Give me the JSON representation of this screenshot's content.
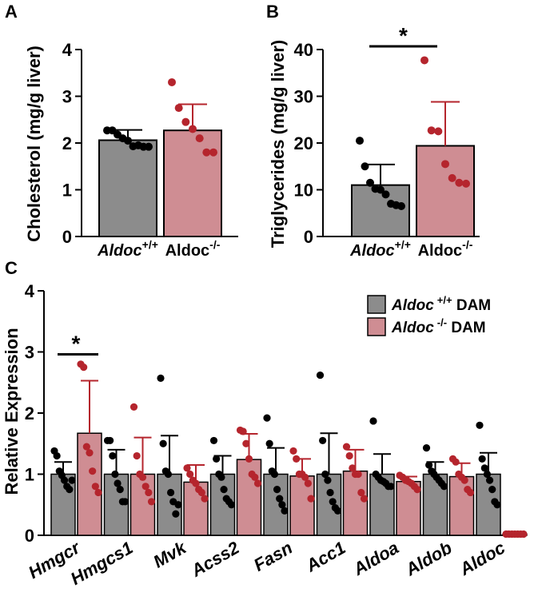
{
  "colors": {
    "wt_bar": "#8c8c8c",
    "ko_bar": "#cf8d93",
    "wt_point": "#000000",
    "ko_point": "#b5252d",
    "ko_err": "#b5252d",
    "wt_err": "#000000"
  },
  "chart_data": [
    {
      "panel": "A",
      "type": "bar",
      "ylabel": "Cholesterol (mg/g liver)",
      "ylim": [
        0,
        4
      ],
      "yticks": [
        "0",
        "1",
        "2",
        "3",
        "4"
      ],
      "categories": [
        {
          "italic": "Aldoc",
          "sup": "+/+",
          "plain": ""
        },
        {
          "italic": "",
          "plain": "Aldoc",
          "sup": "-/-"
        }
      ],
      "series": [
        {
          "name": "Aldoc +/+",
          "mean": 2.06,
          "sd": 0.22,
          "points": [
            2.27,
            2.27,
            2.18,
            2.1,
            2.05,
            1.93,
            1.95,
            1.92,
            1.92
          ]
        },
        {
          "name": "Aldoc -/-",
          "mean": 2.27,
          "sd": 0.56,
          "points": [
            3.3,
            2.75,
            2.45,
            2.3,
            2.1,
            1.8,
            1.8
          ]
        }
      ]
    },
    {
      "panel": "B",
      "type": "bar",
      "ylabel": "Triglycerides (mg/g liver)",
      "ylim": [
        0,
        40
      ],
      "yticks": [
        "0",
        "10",
        "20",
        "30",
        "40"
      ],
      "categories": [
        {
          "italic": "Aldoc",
          "sup": "+/+",
          "plain": ""
        },
        {
          "italic": "",
          "plain": "Aldoc",
          "sup": "-/-"
        }
      ],
      "significance": "*",
      "series": [
        {
          "name": "Aldoc +/+",
          "mean": 11.0,
          "sd": 4.4,
          "points": [
            20.5,
            15.0,
            11.5,
            10.2,
            10.0,
            9.0,
            7.0,
            6.7,
            6.5
          ]
        },
        {
          "name": "Aldoc -/-",
          "mean": 19.4,
          "sd": 9.4,
          "points": [
            37.7,
            22.7,
            22.5,
            15.5,
            12.5,
            11.5,
            11.3
          ]
        }
      ]
    },
    {
      "panel": "C",
      "type": "bar",
      "ylabel": "Relative Expression",
      "ylim": [
        0,
        4
      ],
      "yticks": [
        "0",
        "1",
        "2",
        "3",
        "4"
      ],
      "categories": [
        "Hmgcr",
        "Hmgcs1",
        "Mvk",
        "Acss2",
        "Fasn",
        "Acc1",
        "Aldoa",
        "Aldob",
        "Aldoc"
      ],
      "legend": [
        {
          "italic": "Aldoc",
          "sup": "+/+",
          "plain": " DAM"
        },
        {
          "italic": "Aldoc",
          "sup": "-/-",
          "plain": " DAM"
        }
      ],
      "significance": {
        "category": "Hmgcr",
        "label": "*"
      },
      "series": [
        {
          "name": "Aldoc +/+ DAM",
          "means": [
            1.0,
            1.0,
            1.0,
            1.0,
            1.0,
            1.0,
            1.0,
            1.0,
            1.0
          ],
          "sds": [
            0.2,
            0.4,
            0.63,
            0.3,
            0.43,
            0.67,
            0.33,
            0.2,
            0.35
          ],
          "points": [
            [
              1.38,
              1.3,
              1.05,
              0.98,
              0.9,
              0.8,
              0.75,
              0.9
            ],
            [
              1.55,
              1.55,
              1.3,
              1.0,
              0.85,
              0.75,
              0.55,
              0.55
            ],
            [
              2.57,
              1.5,
              1.05,
              1.0,
              0.7,
              0.55,
              0.35,
              0.5
            ],
            [
              1.55,
              1.25,
              1.0,
              0.95,
              0.75,
              0.6,
              0.55,
              0.5
            ],
            [
              1.92,
              1.5,
              1.05,
              1.0,
              0.75,
              0.6,
              0.5,
              0.4
            ],
            [
              2.62,
              1.55,
              1.0,
              0.9,
              0.7,
              0.55,
              0.45,
              0.4
            ],
            [
              1.87,
              1.0,
              0.95,
              0.9,
              0.88,
              0.85,
              0.8,
              0.8
            ],
            [
              1.43,
              1.15,
              1.05,
              1.0,
              0.95,
              0.9,
              0.85,
              0.8
            ],
            [
              1.8,
              1.25,
              1.1,
              1.0,
              0.9,
              0.75,
              0.55,
              0.5
            ]
          ]
        },
        {
          "name": "Aldoc -/- DAM",
          "means": [
            1.67,
            1.0,
            0.87,
            1.24,
            0.97,
            1.05,
            0.88,
            0.96,
            0.02
          ],
          "sds": [
            0.86,
            0.6,
            0.28,
            0.42,
            0.28,
            0.35,
            0.08,
            0.22,
            0.02
          ],
          "points": [
            [
              2.8,
              2.75,
              1.45,
              1.35,
              1.05,
              0.8,
              0.7
            ],
            [
              2.1,
              1.3,
              1.0,
              0.95,
              0.8,
              0.7,
              0.55
            ],
            [
              1.1,
              1.0,
              0.9,
              0.85,
              0.75,
              0.7,
              0.6
            ],
            [
              1.72,
              1.7,
              1.5,
              1.25,
              1.0,
              0.95,
              0.85
            ],
            [
              1.38,
              1.25,
              1.0,
              1.0,
              0.95,
              0.85,
              0.6
            ],
            [
              1.45,
              1.3,
              1.1,
              1.0,
              1.0,
              0.7,
              0.6
            ],
            [
              0.98,
              0.95,
              0.9,
              0.88,
              0.85,
              0.8,
              0.75
            ],
            [
              1.25,
              1.2,
              1.0,
              0.95,
              0.9,
              0.75,
              0.7
            ],
            [
              0.02,
              0.02,
              0.02,
              0.02,
              0.02,
              0.02,
              0.02
            ]
          ]
        }
      ]
    }
  ]
}
